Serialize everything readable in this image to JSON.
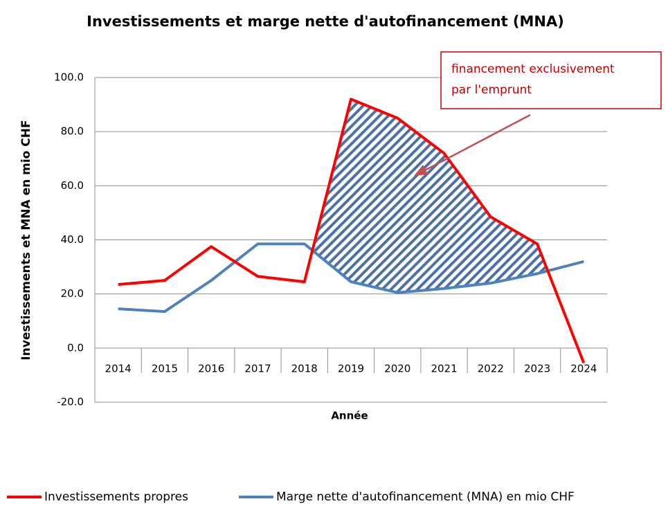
{
  "chart_data": {
    "type": "line",
    "title": "Investissements et marge nette d'autofinancement (MNA)",
    "x_label": "Année",
    "y_label": "Investissements  et MNA en mio CHF",
    "categories": [
      "2014",
      "2015",
      "2016",
      "2017",
      "2018",
      "2019",
      "2020",
      "2021",
      "2022",
      "2023",
      "2024"
    ],
    "series": [
      {
        "name": "Investissements propres",
        "color": "#ff0000",
        "values": [
          23.5,
          25,
          37.5,
          26.5,
          24.5,
          92,
          85,
          72,
          48.5,
          38.5,
          -5.5
        ]
      },
      {
        "name": "Marge nette d'autofinancement (MNA) en mio CHF",
        "color": "#4f81bd",
        "values": [
          14.5,
          13.5,
          25,
          38.5,
          38.5,
          24.5,
          20.5,
          22,
          24,
          27.5,
          32
        ]
      }
    ],
    "ylim": [
      -20,
      100
    ],
    "yticks": [
      {
        "value": -20,
        "label": "-20.0"
      },
      {
        "value": 0,
        "label": "0.0"
      },
      {
        "value": 20,
        "label": "20.0"
      },
      {
        "value": 40,
        "label": "40.0"
      },
      {
        "value": 60,
        "label": "60.0"
      },
      {
        "value": 80,
        "label": "80.0"
      },
      {
        "value": 100,
        "label": "100.0"
      }
    ],
    "grid": true,
    "legend": "bottom",
    "annotation": [
      "financement exclusivement",
      "par l'emprunt"
    ]
  }
}
